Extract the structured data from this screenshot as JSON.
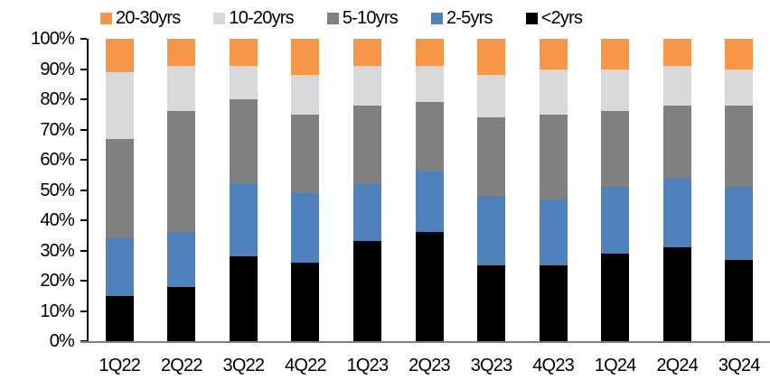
{
  "chart_data": {
    "type": "bar",
    "subtype": "stacked-100-percent",
    "title": "",
    "xlabel": "",
    "ylabel": "",
    "categories": [
      "1Q22",
      "2Q22",
      "3Q22",
      "4Q22",
      "1Q23",
      "2Q23",
      "3Q23",
      "4Q23",
      "1Q24",
      "2Q24",
      "3Q24"
    ],
    "series": [
      {
        "name": "<2yrs",
        "color": "#000000",
        "values": [
          15,
          18,
          28,
          26,
          33,
          36,
          25,
          25,
          29,
          31,
          27
        ]
      },
      {
        "name": "2-5yrs",
        "color": "#4F81BD",
        "values": [
          19,
          18,
          24,
          23,
          19,
          20,
          23,
          22,
          22,
          23,
          24
        ]
      },
      {
        "name": "5-10yrs",
        "color": "#808080",
        "values": [
          33,
          40,
          28,
          26,
          26,
          23,
          26,
          28,
          25,
          24,
          27
        ]
      },
      {
        "name": "10-20yrs",
        "color": "#D9D9D9",
        "values": [
          22,
          15,
          11,
          13,
          13,
          12,
          14,
          15,
          14,
          13,
          12
        ]
      },
      {
        "name": "20-30yrs",
        "color": "#F79646",
        "values": [
          11,
          9,
          9,
          12,
          9,
          9,
          12,
          10,
          10,
          9,
          10
        ]
      }
    ],
    "stack_order_bottom_to_top": [
      "<2yrs",
      "2-5yrs",
      "5-10yrs",
      "10-20yrs",
      "20-30yrs"
    ],
    "legend": {
      "position": "top",
      "order": [
        "20-30yrs",
        "10-20yrs",
        "5-10yrs",
        "2-5yrs",
        "<2yrs"
      ]
    },
    "y_axis": {
      "min": 0,
      "max": 100,
      "tick_labels_top_to_bottom": [
        "100%",
        "90%",
        "80%",
        "70%",
        "60%",
        "50%",
        "40%",
        "30%",
        "20%",
        "10%",
        "0%"
      ],
      "gridlines": false
    },
    "axis_colors": {
      "y_axis_line": "#000000",
      "x_axis_line": "#808080"
    }
  }
}
